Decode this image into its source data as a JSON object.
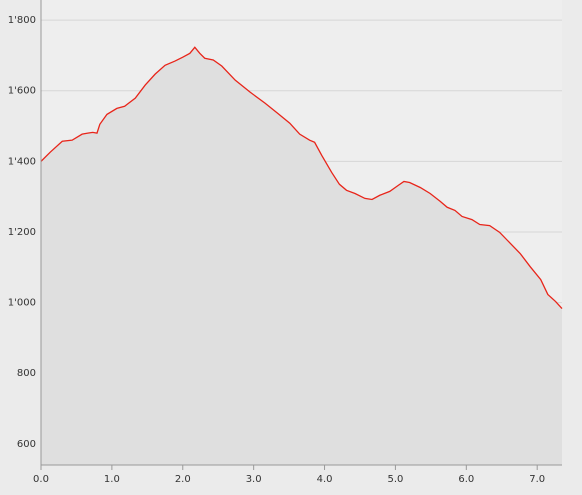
{
  "chart_data": {
    "type": "area",
    "x": [
      0.0,
      0.13,
      0.3,
      0.44,
      0.58,
      0.66,
      0.73,
      0.79,
      0.83,
      0.93,
      1.07,
      1.18,
      1.33,
      1.47,
      1.61,
      1.75,
      1.89,
      2.0,
      2.1,
      2.17,
      2.24,
      2.31,
      2.43,
      2.55,
      2.74,
      2.95,
      3.16,
      3.34,
      3.51,
      3.65,
      3.79,
      3.86,
      3.96,
      4.1,
      4.21,
      4.31,
      4.43,
      4.57,
      4.67,
      4.78,
      4.92,
      5.04,
      5.12,
      5.2,
      5.35,
      5.49,
      5.63,
      5.73,
      5.84,
      5.94,
      6.08,
      6.19,
      6.33,
      6.47,
      6.61,
      6.76,
      6.9,
      7.05,
      7.15,
      7.26,
      7.35
    ],
    "values": [
      1400,
      1426,
      1457,
      1460,
      1477,
      1480,
      1482,
      1480,
      1505,
      1533,
      1550,
      1556,
      1579,
      1616,
      1647,
      1672,
      1684,
      1695,
      1706,
      1723,
      1706,
      1692,
      1687,
      1670,
      1630,
      1596,
      1565,
      1536,
      1508,
      1477,
      1460,
      1454,
      1417,
      1369,
      1335,
      1318,
      1309,
      1295,
      1292,
      1304,
      1315,
      1332,
      1343,
      1340,
      1326,
      1309,
      1287,
      1270,
      1261,
      1244,
      1235,
      1221,
      1218,
      1199,
      1170,
      1139,
      1102,
      1065,
      1023,
      1003,
      983
    ],
    "color": "#e8251a",
    "fill_color": "#dfdfdf",
    "xlim": [
      0,
      7.35
    ],
    "ylim": [
      540,
      1857
    ],
    "xticks": [
      {
        "value": 0,
        "label": "0.0"
      },
      {
        "value": 1,
        "label": "1.0"
      },
      {
        "value": 2,
        "label": "2.0"
      },
      {
        "value": 3,
        "label": "3.0"
      },
      {
        "value": 4,
        "label": "4.0"
      },
      {
        "value": 5,
        "label": "5.0"
      },
      {
        "value": 6,
        "label": "6.0"
      },
      {
        "value": 7,
        "label": "7.0"
      }
    ],
    "yticks": [
      600,
      800,
      {
        "value": 1000,
        "label": "1'000"
      },
      {
        "value": 1200,
        "label": "1'200"
      },
      {
        "value": 1400,
        "label": "1'400"
      },
      {
        "value": 1600,
        "label": "1'600"
      },
      {
        "value": 1800,
        "label": "1'800"
      }
    ],
    "grid": true
  }
}
